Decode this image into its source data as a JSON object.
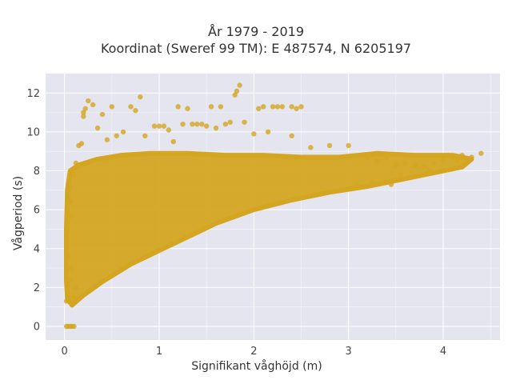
{
  "chart_data": {
    "type": "scatter",
    "title": "År 1979 - 2019",
    "subtitle": "Koordinat (Sweref 99 TM): E 487574, N 6205197",
    "xlabel": "Signifikant våghöjd (m)",
    "ylabel": "Vågperiod (s)",
    "xlim": [
      -0.2,
      4.6
    ],
    "ylim": [
      -0.7,
      13.0
    ],
    "xticks": [
      "0",
      "1",
      "2",
      "3",
      "4"
    ],
    "yticks": [
      "0",
      "2",
      "4",
      "6",
      "8",
      "10",
      "12"
    ],
    "grid": true,
    "legend": "none",
    "marker_color": "#D4A520",
    "background_color": "#E5E5EF",
    "grid_color": "#FFFFFF",
    "points": [
      [
        0.02,
        0.0
      ],
      [
        0.04,
        0.0
      ],
      [
        0.06,
        0.0
      ],
      [
        0.08,
        0.0
      ],
      [
        0.1,
        0.0
      ],
      [
        0.02,
        1.3
      ],
      [
        0.03,
        1.8
      ],
      [
        0.05,
        2.4
      ],
      [
        0.06,
        3.0
      ],
      [
        0.04,
        3.6
      ],
      [
        0.03,
        4.9
      ],
      [
        0.05,
        5.6
      ],
      [
        0.06,
        6.4
      ],
      [
        0.05,
        7.2
      ],
      [
        0.08,
        1.1
      ],
      [
        0.1,
        1.5
      ],
      [
        0.12,
        2.0
      ],
      [
        0.1,
        7.8
      ],
      [
        0.12,
        8.4
      ],
      [
        0.15,
        9.3
      ],
      [
        0.18,
        9.4
      ],
      [
        0.2,
        11.0
      ],
      [
        0.22,
        11.2
      ],
      [
        0.25,
        11.6
      ],
      [
        0.2,
        10.8
      ],
      [
        0.3,
        11.4
      ],
      [
        0.35,
        10.2
      ],
      [
        0.4,
        10.9
      ],
      [
        0.45,
        9.6
      ],
      [
        0.5,
        11.3
      ],
      [
        0.55,
        9.8
      ],
      [
        0.62,
        10.0
      ],
      [
        0.7,
        11.3
      ],
      [
        0.75,
        11.1
      ],
      [
        0.8,
        11.8
      ],
      [
        0.85,
        9.8
      ],
      [
        0.95,
        10.3
      ],
      [
        1.0,
        10.3
      ],
      [
        1.05,
        10.3
      ],
      [
        1.1,
        10.1
      ],
      [
        1.15,
        9.5
      ],
      [
        1.2,
        11.3
      ],
      [
        1.25,
        10.4
      ],
      [
        1.3,
        11.2
      ],
      [
        1.35,
        10.4
      ],
      [
        1.4,
        10.4
      ],
      [
        1.45,
        10.4
      ],
      [
        1.5,
        10.3
      ],
      [
        1.55,
        11.3
      ],
      [
        1.6,
        10.2
      ],
      [
        1.65,
        11.3
      ],
      [
        1.7,
        10.4
      ],
      [
        1.75,
        10.5
      ],
      [
        1.8,
        11.9
      ],
      [
        1.82,
        12.1
      ],
      [
        1.85,
        12.4
      ],
      [
        1.9,
        10.5
      ],
      [
        2.0,
        9.9
      ],
      [
        2.05,
        11.2
      ],
      [
        2.1,
        11.3
      ],
      [
        2.15,
        10.0
      ],
      [
        2.2,
        11.3
      ],
      [
        2.25,
        11.3
      ],
      [
        2.3,
        11.3
      ],
      [
        2.4,
        11.3
      ],
      [
        2.45,
        11.2
      ],
      [
        2.5,
        11.3
      ],
      [
        2.4,
        9.8
      ],
      [
        2.6,
        9.2
      ],
      [
        2.8,
        9.3
      ],
      [
        3.0,
        9.3
      ],
      [
        3.2,
        8.7
      ],
      [
        3.3,
        8.5
      ],
      [
        3.4,
        8.7
      ],
      [
        3.5,
        8.3
      ],
      [
        3.6,
        8.4
      ],
      [
        3.7,
        8.3
      ],
      [
        3.8,
        8.2
      ],
      [
        3.9,
        8.4
      ],
      [
        4.0,
        8.5
      ],
      [
        4.05,
        8.8
      ],
      [
        4.1,
        8.7
      ],
      [
        4.2,
        8.8
      ],
      [
        4.3,
        8.7
      ],
      [
        4.4,
        8.9
      ],
      [
        3.1,
        7.2
      ],
      [
        3.25,
        7.4
      ],
      [
        3.45,
        7.3
      ],
      [
        3.55,
        7.8
      ],
      [
        3.85,
        8.0
      ],
      [
        4.15,
        8.5
      ]
    ]
  }
}
